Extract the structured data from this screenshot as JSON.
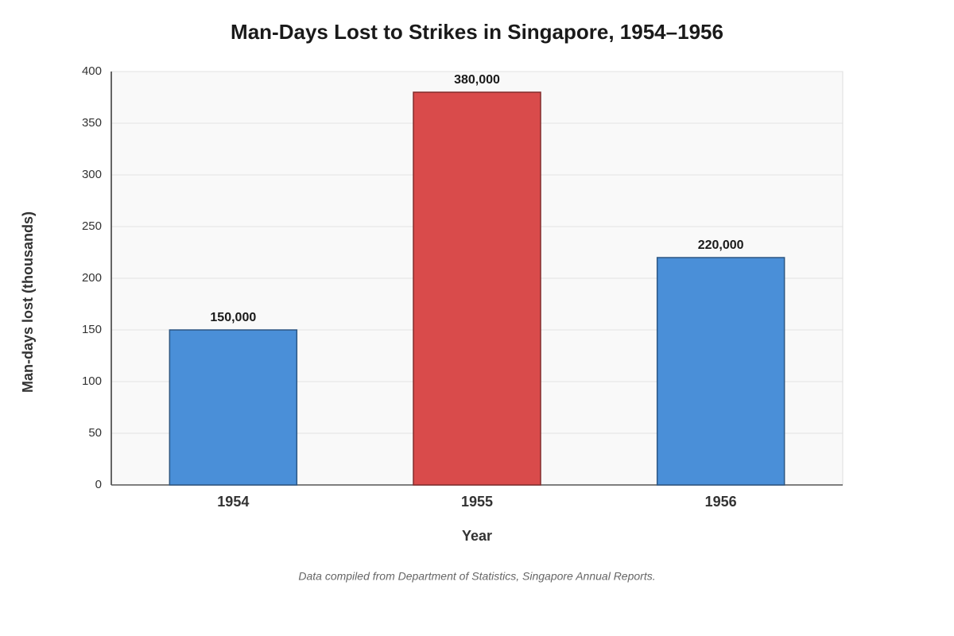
{
  "chart_data": {
    "type": "bar",
    "title": "Man-Days Lost to Strikes in Singapore, 1954–1956",
    "x_label": "Year",
    "y_label": "Man-days lost (thousands)",
    "note": "Data compiled from Department of Statistics, Singapore Annual Reports.",
    "categories": [
      "1954",
      "1955",
      "1956"
    ],
    "values": [
      150,
      380,
      220
    ],
    "value_labels": [
      "150,000",
      "380,000",
      "220,000"
    ],
    "colors": [
      "#4a8fd8",
      "#d94b4b",
      "#4a8fd8"
    ],
    "ylim": [
      0,
      400
    ],
    "yticks": [
      0,
      50,
      100,
      150,
      200,
      250,
      300,
      350,
      400
    ],
    "grid": true
  }
}
